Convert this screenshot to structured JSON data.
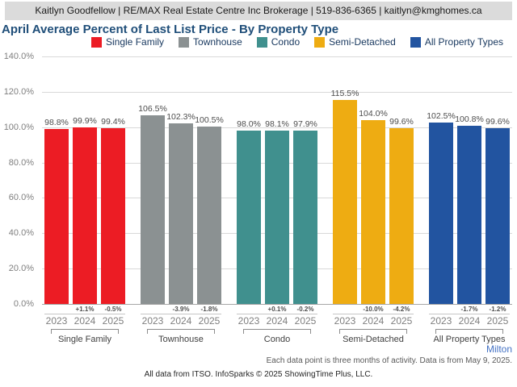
{
  "header": {
    "text": "Kaitlyn Goodfellow | RE/MAX Real Estate Centre Inc Brokerage | 519-836-6365 | kaitlyn@kmghomes.ca"
  },
  "title": "April Average Percent of Last List Price - By Property Type",
  "legend": [
    {
      "label": "Single Family",
      "color": "#ec1c24"
    },
    {
      "label": "Townhouse",
      "color": "#8b9192"
    },
    {
      "label": "Condo",
      "color": "#40908e"
    },
    {
      "label": "Semi-Detached",
      "color": "#eeac12"
    },
    {
      "label": "All Property Types",
      "color": "#2254a0"
    }
  ],
  "chart_data": {
    "type": "bar",
    "title": "April Average Percent of Last List Price - By Property Type",
    "xlabel": "",
    "ylabel": "",
    "ylim": [
      0,
      140
    ],
    "grid": true,
    "legend_position": "top",
    "yticks": [
      "140.0%",
      "120.0%",
      "100.0%",
      "80.0%",
      "60.0%",
      "40.0%",
      "20.0%",
      "0.0%"
    ],
    "categories": [
      "Single Family",
      "Townhouse",
      "Condo",
      "Semi-Detached",
      "All Property Types"
    ],
    "series": [
      {
        "name": "2023",
        "values": [
          98.8,
          106.5,
          98.0,
          115.5,
          102.5
        ]
      },
      {
        "name": "2024",
        "values": [
          99.9,
          102.3,
          98.1,
          104.0,
          100.8
        ]
      },
      {
        "name": "2025",
        "values": [
          99.4,
          100.5,
          97.9,
          99.6,
          99.6
        ]
      }
    ],
    "years": [
      "2023",
      "2024",
      "2025"
    ],
    "groups": [
      {
        "name": "Single Family",
        "color": "#ec1c24",
        "values": [
          98.8,
          99.9,
          99.4
        ],
        "value_labels": [
          "98.8%",
          "99.9%",
          "99.4%"
        ],
        "changes": [
          "",
          "+1.1%",
          "-0.5%"
        ]
      },
      {
        "name": "Townhouse",
        "color": "#8b9192",
        "values": [
          106.5,
          102.3,
          100.5
        ],
        "value_labels": [
          "106.5%",
          "102.3%",
          "100.5%"
        ],
        "changes": [
          "",
          "-3.9%",
          "-1.8%"
        ]
      },
      {
        "name": "Condo",
        "color": "#40908e",
        "values": [
          98.0,
          98.1,
          97.9
        ],
        "value_labels": [
          "98.0%",
          "98.1%",
          "97.9%"
        ],
        "changes": [
          "",
          "+0.1%",
          "-0.2%"
        ]
      },
      {
        "name": "Semi-Detached",
        "color": "#eeac12",
        "values": [
          115.5,
          104.0,
          99.6
        ],
        "value_labels": [
          "115.5%",
          "104.0%",
          "99.6%"
        ],
        "changes": [
          "",
          "-10.0%",
          "-4.2%"
        ]
      },
      {
        "name": "All Property Types",
        "color": "#2254a0",
        "values": [
          102.5,
          100.8,
          99.6
        ],
        "value_labels": [
          "102.5%",
          "100.8%",
          "99.6%"
        ],
        "changes": [
          "",
          "-1.7%",
          "-1.2%"
        ]
      }
    ]
  },
  "footer": {
    "region": "Milton",
    "note": "Each data point is three months of activity. Data is from May 9, 2025.",
    "attribution": "All data from ITSO. InfoSparks © 2025 ShowingTime Plus, LLC."
  }
}
